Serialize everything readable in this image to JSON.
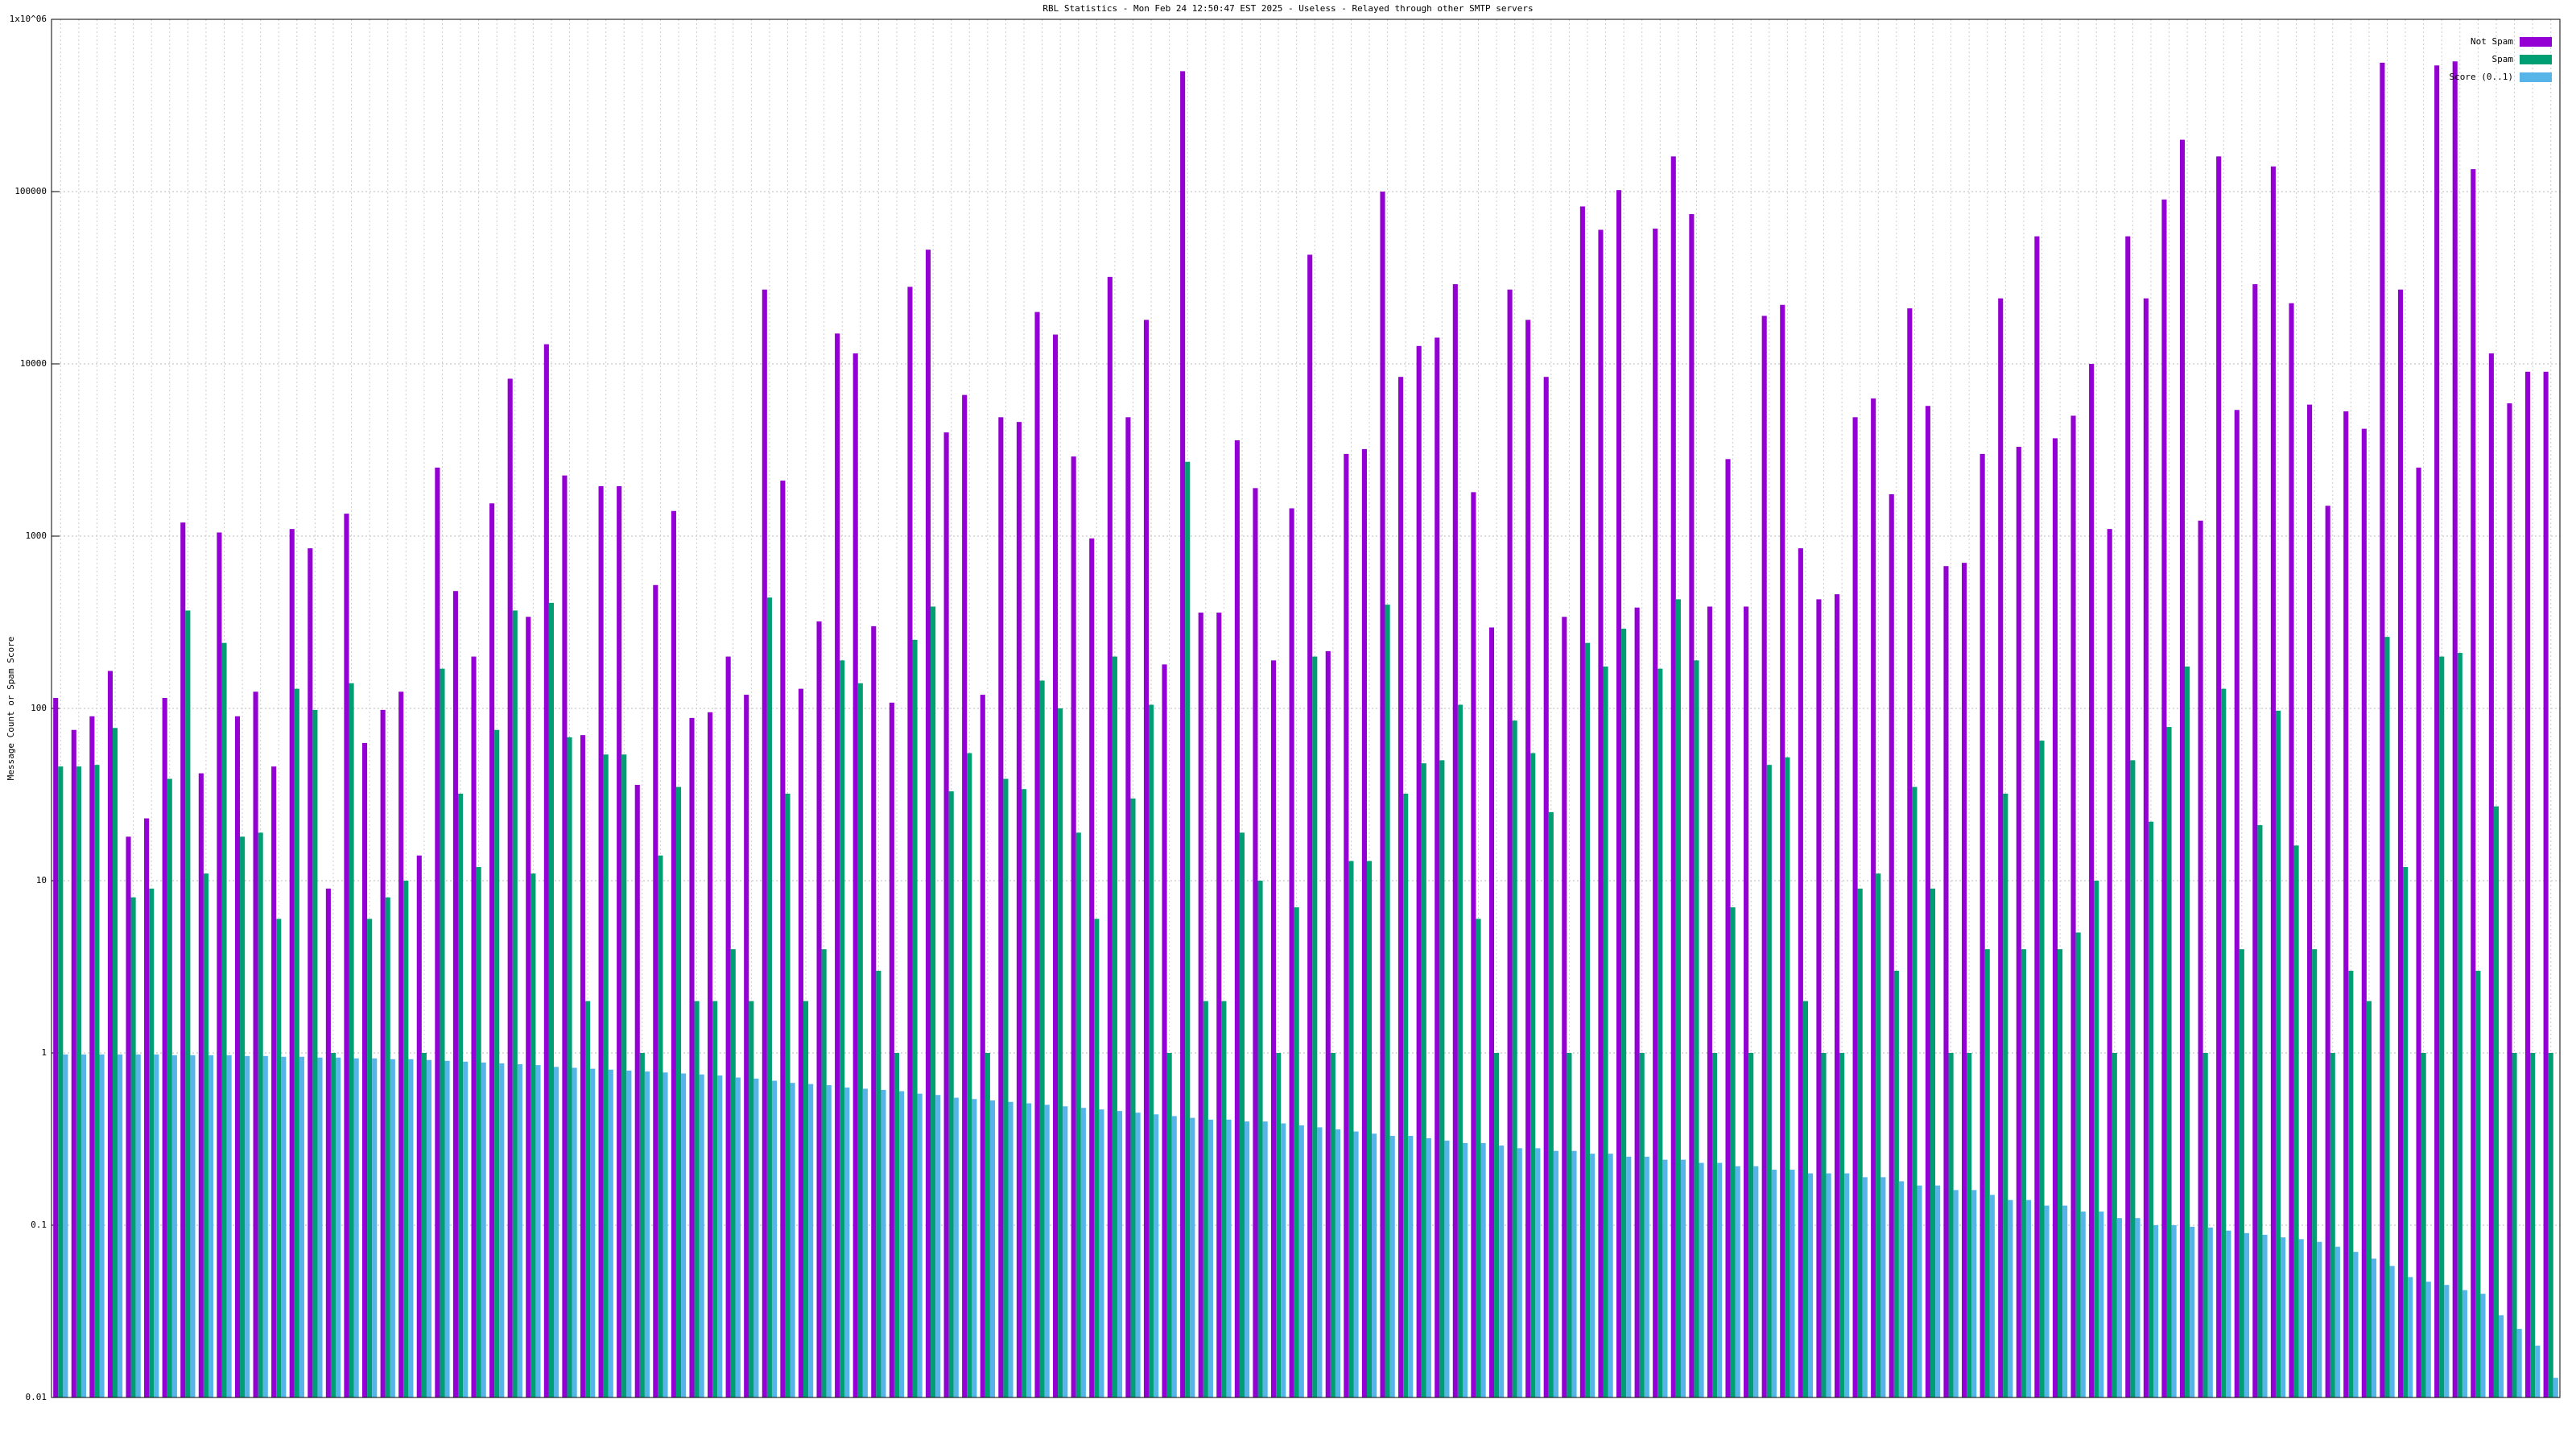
{
  "chart_data": {
    "type": "bar",
    "title": "RBL Statistics - Mon Feb 24 12:50:47 EST 2025 - Useless - Relayed through other SMTP servers",
    "y_label": "Message Count or Spam Score",
    "log_scale": true,
    "grid": true,
    "legend": "top-right",
    "ylim": [
      0.01,
      1000000
    ],
    "yticks": [
      0.01,
      0.1,
      1,
      10,
      100,
      1000,
      10000,
      100000,
      {
        "value": 1000000,
        "label": "1x10^06"
      }
    ],
    "categories": [
      null,
      null,
      null,
      null,
      null,
      null,
      null,
      null,
      null,
      null,
      null,
      null,
      null,
      null,
      null,
      null,
      null,
      null,
      null,
      null,
      null,
      null,
      null,
      null,
      null,
      null,
      null,
      null,
      null,
      null,
      null,
      null,
      null,
      null,
      null,
      null,
      null,
      null,
      null,
      null,
      null,
      null,
      null,
      null,
      null,
      null,
      null,
      null,
      null,
      null,
      null,
      null,
      null,
      null,
      null,
      null,
      null,
      null,
      null,
      null,
      null,
      null,
      null,
      null,
      null,
      null,
      null,
      null,
      null,
      null,
      null,
      null,
      null,
      null,
      null,
      null,
      null,
      null,
      null,
      null,
      null,
      null,
      null,
      null,
      null,
      null,
      null,
      null,
      null,
      null,
      null,
      null,
      null,
      null,
      null,
      null,
      null,
      null,
      null,
      null,
      null,
      null,
      null,
      null,
      null,
      null,
      null,
      null,
      null,
      null,
      null,
      null,
      null,
      null,
      null,
      null,
      null,
      null,
      null,
      null,
      null,
      null,
      null,
      null,
      null,
      null,
      null,
      null,
      null,
      null,
      null,
      null,
      null,
      null,
      null,
      null,
      null,
      null
    ],
    "series": [
      {
        "name": "Not Spam",
        "color": "#9400d3",
        "values": [
          115,
          75,
          90,
          165,
          18,
          23,
          115,
          1200,
          42,
          1050,
          90,
          125,
          46,
          1100,
          850,
          9,
          1350,
          63,
          98,
          125,
          14,
          2500,
          480,
          200,
          1550,
          8200,
          340,
          13000,
          2250,
          70,
          1950,
          1950,
          36,
          520,
          1400,
          88,
          95,
          200,
          120,
          27000,
          2100,
          130,
          320,
          15000,
          11500,
          300,
          108,
          28000,
          46000,
          4000,
          6600,
          120,
          4900,
          4600,
          20000,
          14800,
          2900,
          970,
          32000,
          4900,
          18000,
          180,
          500000,
          360,
          360,
          3600,
          1900,
          190,
          1450,
          43000,
          215,
          3000,
          3200,
          100000,
          8400,
          12700,
          14200,
          29000,
          1800,
          295,
          27000,
          18000,
          8400,
          340,
          82000,
          60000,
          102000,
          385,
          61000,
          160000,
          74000,
          390,
          2800,
          390,
          19000,
          22000,
          850,
          430,
          460,
          4900,
          6300,
          1750,
          21000,
          5700,
          670,
          700,
          3000,
          24000,
          3300,
          55000,
          3700,
          5000,
          10000,
          1100,
          55000,
          24000,
          90000,
          200000,
          1230,
          160000,
          5400,
          29000,
          140000,
          22500,
          5800,
          1500,
          5300,
          4200,
          560000,
          27000,
          2500,
          540000,
          570000,
          135000,
          11500,
          5900,
          9000,
          9000
        ]
      },
      {
        "name": "Spam",
        "color": "#009e73",
        "values": [
          46,
          46,
          47,
          77,
          8,
          9,
          39,
          370,
          11,
          240,
          18,
          19,
          6,
          130,
          98,
          1,
          140,
          6,
          8,
          10,
          1,
          170,
          32,
          12,
          75,
          370,
          11,
          410,
          68,
          2,
          54,
          54,
          1,
          14,
          35,
          2,
          2,
          4,
          2,
          440,
          32,
          2,
          4,
          190,
          140,
          3,
          1,
          250,
          390,
          33,
          55,
          1,
          39,
          34,
          145,
          100,
          19,
          6,
          200,
          30,
          105,
          1,
          2700,
          2,
          2,
          19,
          10,
          1,
          7,
          200,
          1,
          13,
          13,
          400,
          32,
          48,
          50,
          105,
          6,
          1,
          85,
          55,
          25,
          1,
          240,
          175,
          290,
          1,
          170,
          430,
          190,
          1,
          7,
          1,
          47,
          52,
          2,
          1,
          1,
          9,
          11,
          3,
          35,
          9,
          1,
          1,
          4,
          32,
          4,
          65,
          4,
          5,
          10,
          1,
          50,
          22,
          78,
          175,
          1,
          130,
          4,
          21,
          97,
          16,
          4,
          1,
          3,
          2,
          260,
          12,
          1,
          200,
          210,
          3,
          27,
          1,
          1,
          1
        ]
      },
      {
        "name": "Score (0..1)",
        "color": "#56b4e9",
        "values": [
          0.98,
          0.98,
          0.98,
          0.98,
          0.98,
          0.98,
          0.97,
          0.97,
          0.97,
          0.97,
          0.96,
          0.96,
          0.95,
          0.95,
          0.94,
          0.94,
          0.93,
          0.93,
          0.92,
          0.92,
          0.91,
          0.9,
          0.89,
          0.88,
          0.87,
          0.86,
          0.85,
          0.83,
          0.82,
          0.81,
          0.8,
          0.79,
          0.78,
          0.77,
          0.76,
          0.75,
          0.74,
          0.72,
          0.71,
          0.69,
          0.67,
          0.66,
          0.65,
          0.63,
          0.62,
          0.61,
          0.6,
          0.58,
          0.57,
          0.55,
          0.54,
          0.53,
          0.52,
          0.51,
          0.5,
          0.49,
          0.48,
          0.47,
          0.46,
          0.45,
          0.44,
          0.43,
          0.42,
          0.41,
          0.41,
          0.4,
          0.4,
          0.39,
          0.38,
          0.37,
          0.36,
          0.35,
          0.34,
          0.33,
          0.33,
          0.32,
          0.31,
          0.3,
          0.3,
          0.29,
          0.28,
          0.28,
          0.27,
          0.27,
          0.26,
          0.26,
          0.25,
          0.25,
          0.24,
          0.24,
          0.23,
          0.23,
          0.22,
          0.22,
          0.21,
          0.21,
          0.2,
          0.2,
          0.2,
          0.19,
          0.19,
          0.18,
          0.17,
          0.17,
          0.16,
          0.16,
          0.15,
          0.14,
          0.14,
          0.13,
          0.13,
          0.12,
          0.12,
          0.11,
          0.11,
          0.1,
          0.1,
          0.098,
          0.097,
          0.093,
          0.09,
          0.088,
          0.085,
          0.083,
          0.08,
          0.075,
          0.07,
          0.064,
          0.058,
          0.05,
          0.047,
          0.045,
          0.042,
          0.04,
          0.03,
          0.025,
          0.02,
          0.013
        ]
      }
    ]
  }
}
